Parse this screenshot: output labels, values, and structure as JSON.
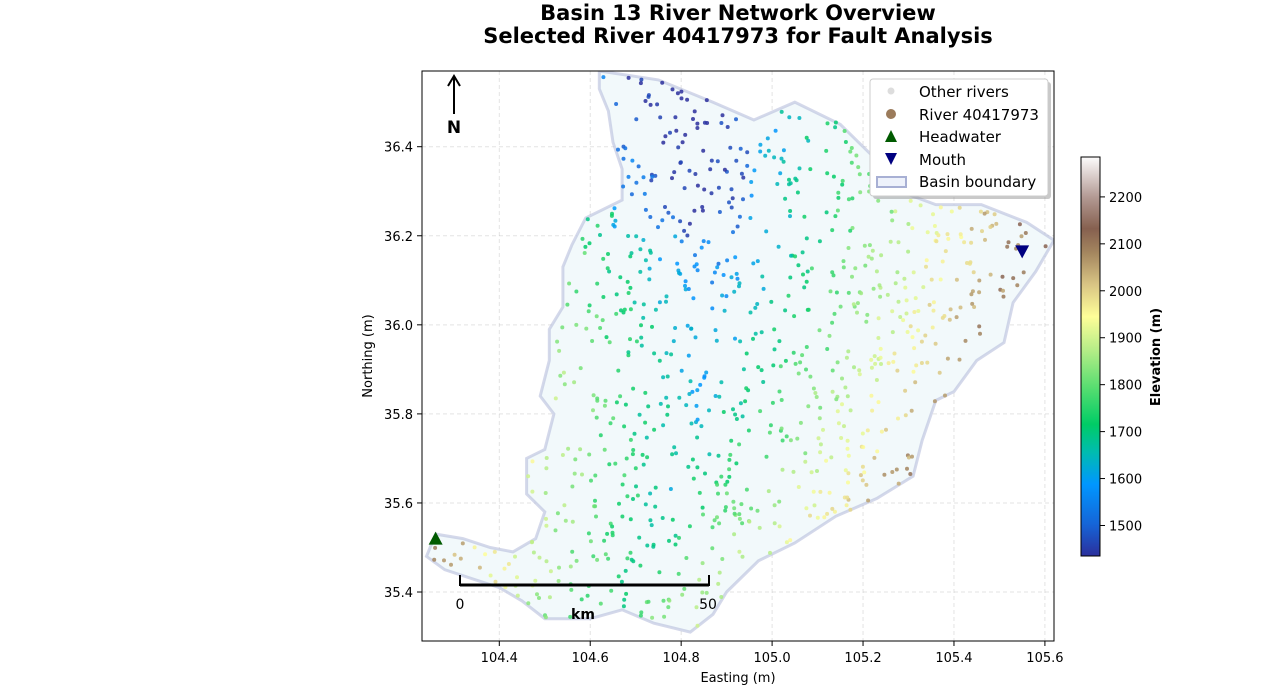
{
  "chart_data": {
    "type": "scatter",
    "title": "Basin 13 River Network Overview",
    "subtitle": "Selected River 40417973 for Fault Analysis",
    "xlabel": "Easting (m)",
    "ylabel": "Northing (m)",
    "xlim": [
      104.23,
      105.62
    ],
    "ylim": [
      35.29,
      36.57
    ],
    "xticks": [
      "104.4",
      "104.6",
      "104.8",
      "105.0",
      "105.2",
      "105.4",
      "105.6"
    ],
    "yticks": [
      "35.4",
      "35.6",
      "35.8",
      "36.0",
      "36.2",
      "36.4"
    ],
    "grid": true,
    "legend_position": "top-right",
    "legend": [
      "Other rivers",
      "River 40417973",
      "Headwater",
      "Mouth",
      "Basin boundary"
    ],
    "colorbar": {
      "label": "Elevation (m)",
      "range": [
        1435,
        2285
      ],
      "ticks": [
        "1500",
        "1600",
        "1700",
        "1800",
        "1900",
        "2000",
        "2100",
        "2200"
      ],
      "colormap": "terrain"
    },
    "headwater": {
      "x": 104.26,
      "y": 35.52
    },
    "mouth": {
      "x": 105.55,
      "y": 36.165
    },
    "basin_boundary": [
      [
        104.43,
        35.49
      ],
      [
        104.48,
        35.52
      ],
      [
        104.5,
        35.58
      ],
      [
        104.46,
        35.62
      ],
      [
        104.46,
        35.7
      ],
      [
        104.5,
        35.72
      ],
      [
        104.52,
        35.8
      ],
      [
        104.49,
        35.84
      ],
      [
        104.51,
        35.92
      ],
      [
        104.51,
        35.99
      ],
      [
        104.54,
        36.04
      ],
      [
        104.54,
        36.13
      ],
      [
        104.56,
        36.18
      ],
      [
        104.59,
        36.24
      ],
      [
        104.67,
        36.28
      ],
      [
        104.67,
        36.35
      ],
      [
        104.65,
        36.41
      ],
      [
        104.64,
        36.48
      ],
      [
        104.62,
        36.53
      ],
      [
        104.62,
        36.57
      ],
      [
        104.75,
        36.55
      ],
      [
        104.87,
        36.5
      ],
      [
        104.96,
        36.46
      ],
      [
        105.05,
        36.5
      ],
      [
        105.15,
        36.45
      ],
      [
        105.22,
        36.38
      ],
      [
        105.28,
        36.3
      ],
      [
        105.36,
        36.27
      ],
      [
        105.46,
        36.27
      ],
      [
        105.56,
        36.23
      ],
      [
        105.62,
        36.19
      ],
      [
        105.58,
        36.12
      ],
      [
        105.53,
        36.05
      ],
      [
        105.51,
        35.96
      ],
      [
        105.45,
        35.92
      ],
      [
        105.4,
        35.85
      ],
      [
        105.36,
        35.83
      ],
      [
        105.33,
        35.74
      ],
      [
        105.31,
        35.66
      ],
      [
        105.23,
        35.61
      ],
      [
        105.14,
        35.57
      ],
      [
        105.05,
        35.51
      ],
      [
        104.97,
        35.47
      ],
      [
        104.9,
        35.4
      ],
      [
        104.87,
        35.35
      ],
      [
        104.82,
        35.31
      ],
      [
        104.74,
        35.33
      ],
      [
        104.67,
        35.36
      ],
      [
        104.6,
        35.34
      ],
      [
        104.5,
        35.34
      ],
      [
        104.45,
        35.38
      ],
      [
        104.4,
        35.41
      ],
      [
        104.34,
        35.43
      ],
      [
        104.28,
        35.45
      ],
      [
        104.24,
        35.48
      ],
      [
        104.26,
        35.53
      ],
      [
        104.32,
        35.52
      ],
      [
        104.38,
        35.5
      ]
    ],
    "colors": {
      "other_rivers": "#dddddd",
      "river_legend": "#9b7b5b",
      "headwater": "#005a00",
      "mouth": "#000080",
      "boundary": "#b0b8d8",
      "basin_fill": "#f2f9fb"
    }
  },
  "north_arrow": {
    "label": "N"
  },
  "scale_bar": {
    "start": "0",
    "end": "50",
    "unit": "km"
  }
}
